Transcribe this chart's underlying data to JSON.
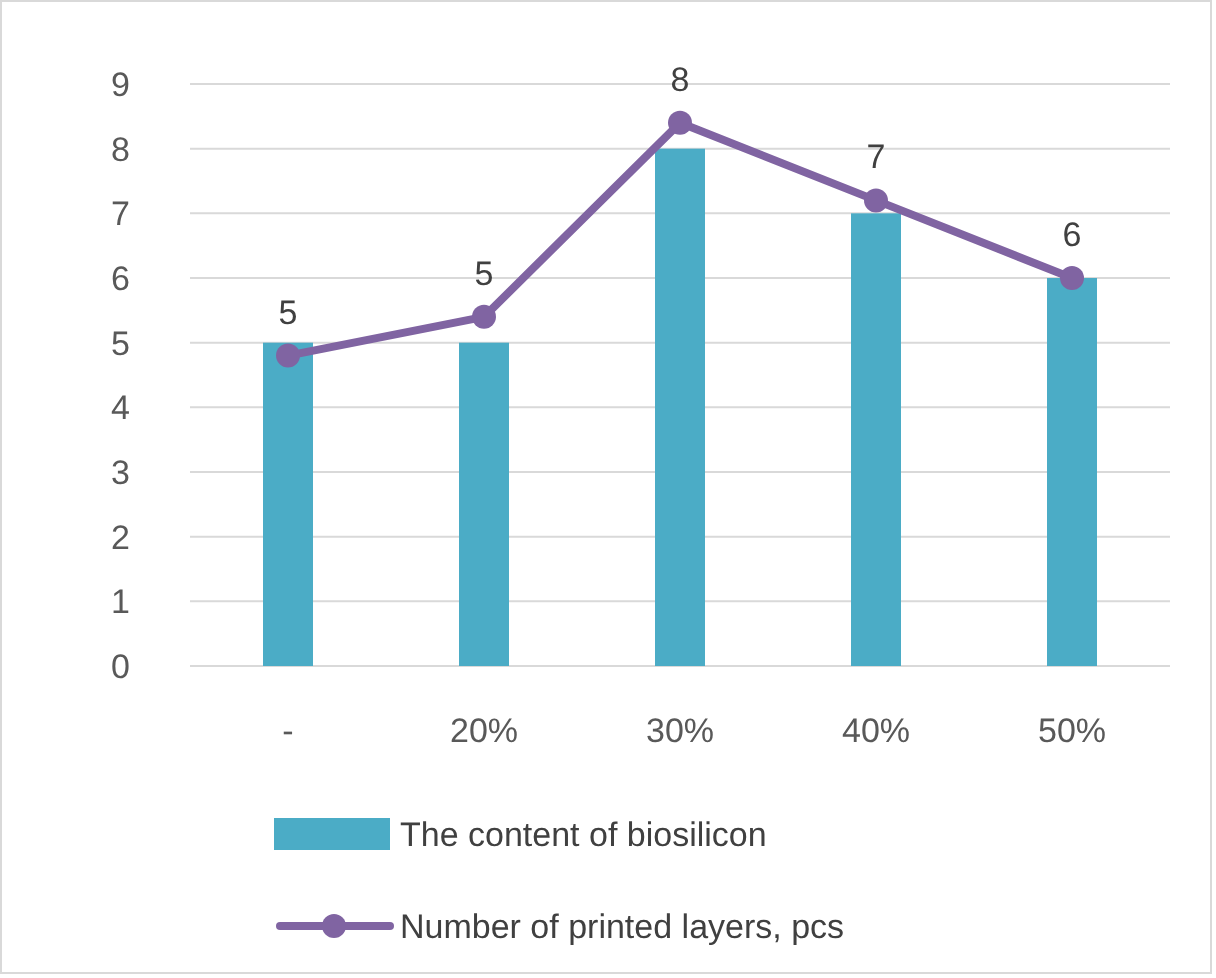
{
  "chart_data": {
    "type": "bar",
    "categories": [
      "-",
      "20%",
      "30%",
      "40%",
      "50%"
    ],
    "series": [
      {
        "name": "The content of biosilicon",
        "color": "#4bacc6",
        "values": [
          5,
          5,
          8,
          7,
          6
        ]
      },
      {
        "name": "Number of printed layers, pcs",
        "type": "line",
        "color": "#8064a2",
        "values": [
          4.8,
          5.4,
          8.4,
          7.2,
          6.0
        ],
        "value_labels": [
          "5",
          "5",
          "8",
          "7",
          "6"
        ]
      }
    ],
    "ylim": [
      0,
      9
    ],
    "yticks": [
      0,
      1,
      2,
      3,
      4,
      5,
      6,
      7,
      8,
      9
    ],
    "grid": "y",
    "legend": "bottom",
    "marker": "circle",
    "line_style": "solid"
  }
}
